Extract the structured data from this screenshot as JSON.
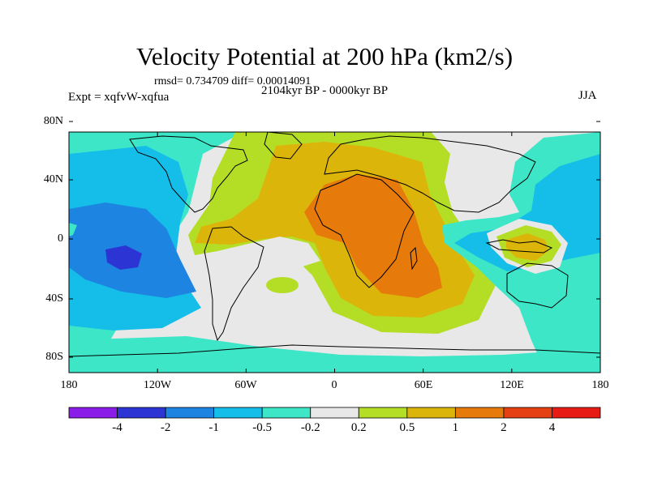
{
  "header": {
    "title": "Velocity Potential at 200 hPa (km2/s)",
    "stats": "rmsd= 0.734709 diff= 0.00014091",
    "period": "2104kyr BP - 0000kyr BP",
    "experiment": "Expt = xqfvW-xqfua",
    "season": "JJA"
  },
  "axes": {
    "lat_labels": [
      "80N",
      "40N",
      "0",
      "40S",
      "80S"
    ],
    "lon_labels": [
      "180",
      "120W",
      "60W",
      "0",
      "60E",
      "120E",
      "180"
    ]
  },
  "colorbar": {
    "labels": [
      "-4",
      "-2",
      "-1",
      "-0.5",
      "-0.2",
      "0.2",
      "0.5",
      "1",
      "2",
      "4"
    ],
    "colors": [
      "#8a1ee8",
      "#2c34d4",
      "#1e84e2",
      "#14bee8",
      "#3de6c7",
      "#e8e8e8",
      "#b4de26",
      "#dcb50a",
      "#e67a0a",
      "#e44012",
      "#e81a14"
    ]
  },
  "palette": {
    "neutral": "#e8e8e8",
    "cool_light": "#3de6c7",
    "cool_mid": "#14bee8",
    "cool_dark": "#1e84e2",
    "cool_deep": "#2c34d4",
    "warm_light": "#b4de26",
    "warm_mid": "#dcb50a",
    "warm_dark": "#e67a0a"
  }
}
